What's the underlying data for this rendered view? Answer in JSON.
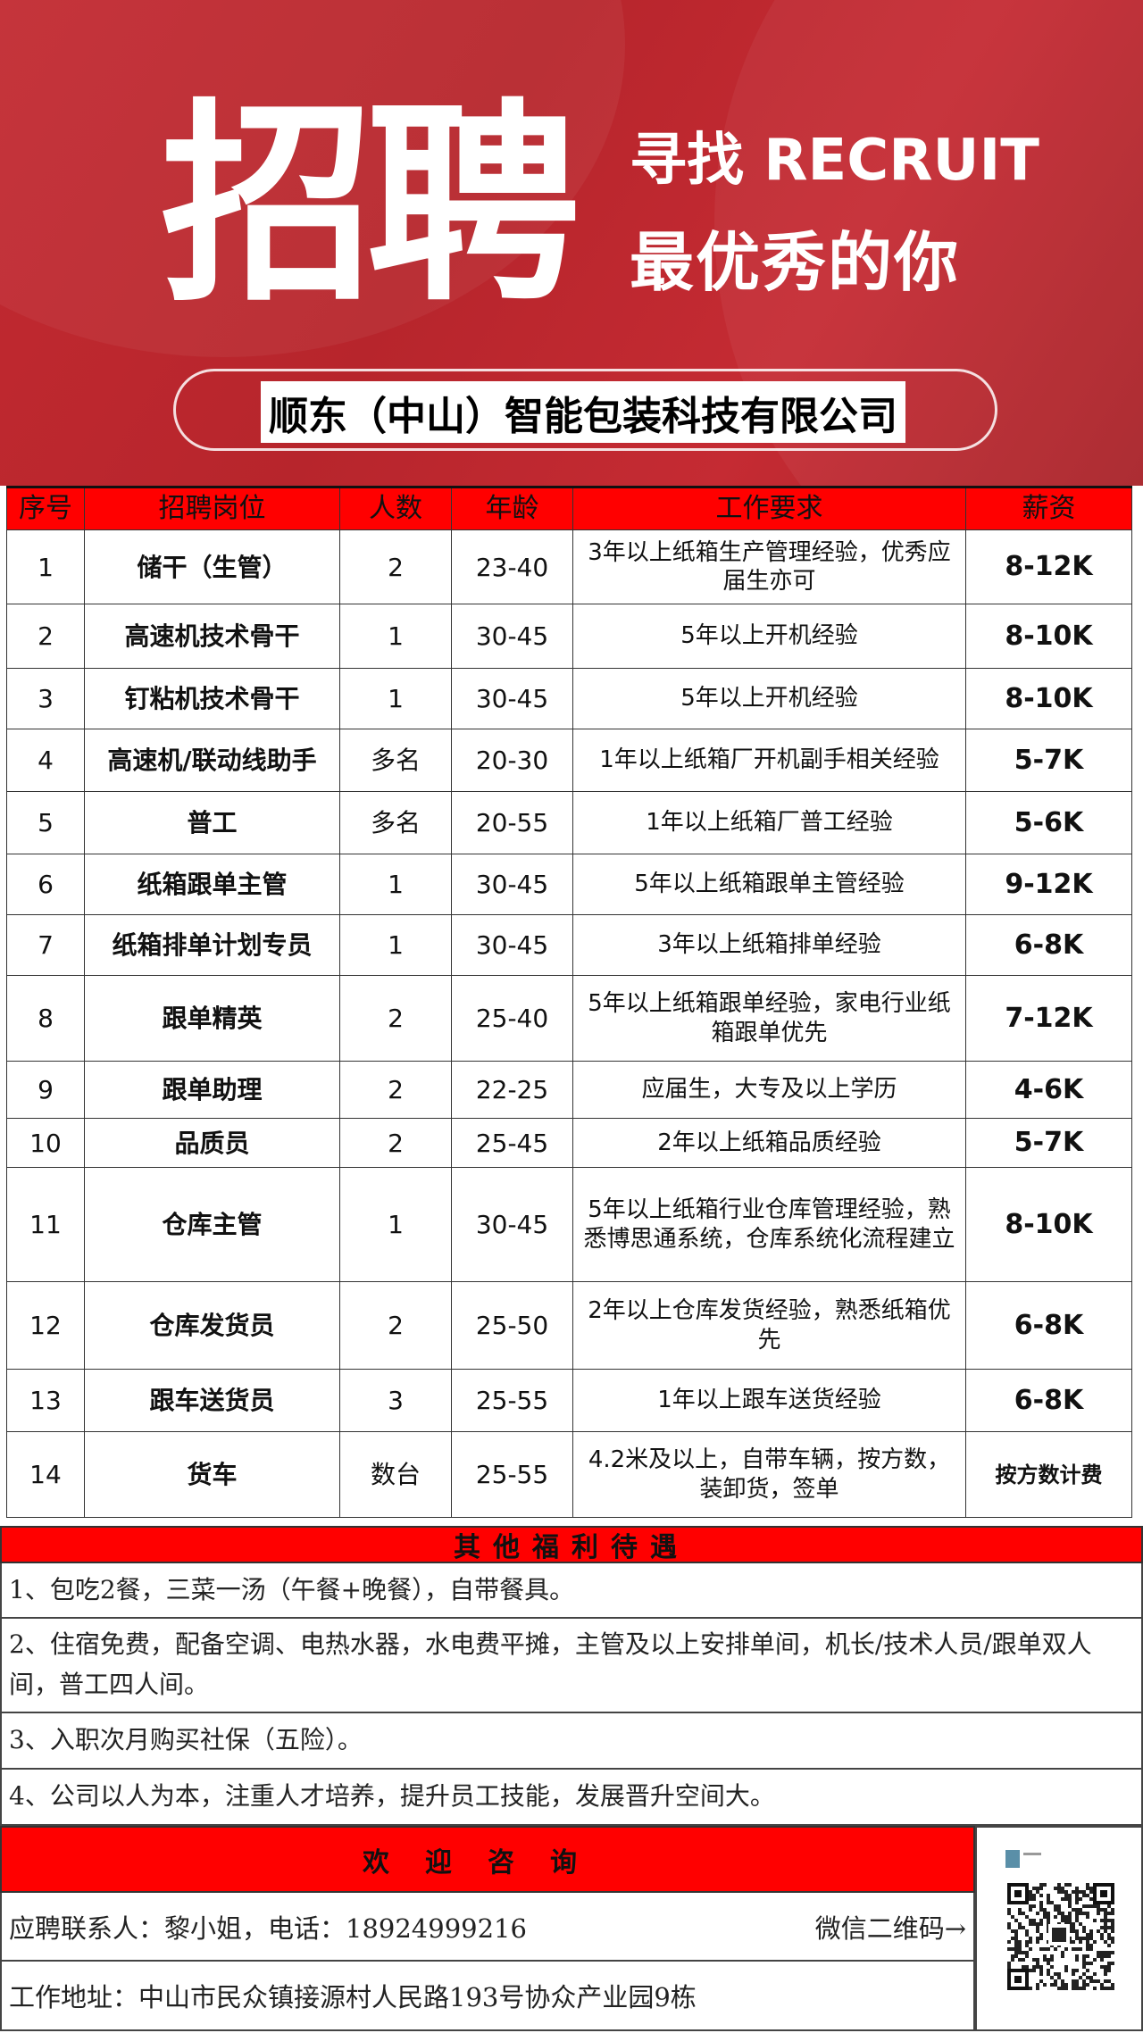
{
  "banner": {
    "title": "招聘",
    "subtitle1": "寻找 RECRUIT",
    "subtitle2": "最优秀的你",
    "company": "顺东（中山）智能包装科技有限公司"
  },
  "table": {
    "headers": [
      "序号",
      "招聘岗位",
      "人数",
      "年龄",
      "工作要求",
      "薪资"
    ],
    "rows": [
      {
        "no": "1",
        "position": "储干（生管）",
        "count": "2",
        "age": "23-40",
        "requirement": "3年以上纸箱生产管理经验，优秀应届生亦可",
        "salary": "8-12K"
      },
      {
        "no": "2",
        "position": "高速机技术骨干",
        "count": "1",
        "age": "30-45",
        "requirement": "5年以上开机经验",
        "salary": "8-10K"
      },
      {
        "no": "3",
        "position": "钉粘机技术骨干",
        "count": "1",
        "age": "30-45",
        "requirement": "5年以上开机经验",
        "salary": "8-10K"
      },
      {
        "no": "4",
        "position": "高速机/联动线助手",
        "count": "多名",
        "age": "20-30",
        "requirement": "1年以上纸箱厂开机副手相关经验",
        "salary": "5-7K"
      },
      {
        "no": "5",
        "position": "普工",
        "count": "多名",
        "age": "20-55",
        "requirement": "1年以上纸箱厂普工经验",
        "salary": "5-6K"
      },
      {
        "no": "6",
        "position": "纸箱跟单主管",
        "count": "1",
        "age": "30-45",
        "requirement": "5年以上纸箱跟单主管经验",
        "salary": "9-12K"
      },
      {
        "no": "7",
        "position": "纸箱排单计划专员",
        "count": "1",
        "age": "30-45",
        "requirement": "3年以上纸箱排单经验",
        "salary": "6-8K"
      },
      {
        "no": "8",
        "position": "跟单精英",
        "count": "2",
        "age": "25-40",
        "requirement": "5年以上纸箱跟单经验，家电行业纸箱跟单优先",
        "salary": "7-12K"
      },
      {
        "no": "9",
        "position": "跟单助理",
        "count": "2",
        "age": "22-25",
        "requirement": "应届生，大专及以上学历",
        "salary": "4-6K"
      },
      {
        "no": "10",
        "position": "品质员",
        "count": "2",
        "age": "25-45",
        "requirement": "2年以上纸箱品质经验",
        "salary": "5-7K"
      },
      {
        "no": "11",
        "position": "仓库主管",
        "count": "1",
        "age": "30-45",
        "requirement": "5年以上纸箱行业仓库管理经验，熟悉博思通系统，仓库系统化流程建立",
        "salary": "8-10K"
      },
      {
        "no": "12",
        "position": "仓库发货员",
        "count": "2",
        "age": "25-50",
        "requirement": "2年以上仓库发货经验，熟悉纸箱优先",
        "salary": "6-8K"
      },
      {
        "no": "13",
        "position": "跟车送货员",
        "count": "3",
        "age": "25-55",
        "requirement": "1年以上跟车送货经验",
        "salary": "6-8K"
      },
      {
        "no": "14",
        "position": "货车",
        "count": "数台",
        "age": "25-55",
        "requirement": "4.2米及以上，自带车辆，按方数，装卸货，签单",
        "salary": "按方数计费"
      }
    ]
  },
  "benefits": {
    "title": "其他福利待遇",
    "items": [
      "1、包吃2餐，三菜一汤（午餐+晚餐），自带餐具。",
      "2、住宿免费，配备空调、电热水器，水电费平摊，主管及以上安排单间，机长/技术人员/跟单双人间，普工四人间。",
      "3、入职次月购买社保（五险）。",
      "4、公司以人为本，注重人才培养，提升员工技能，发展晋升空间大。"
    ]
  },
  "consult": {
    "title": "欢迎咨询",
    "contact": "应聘联系人：黎小姐，电话：18924999216",
    "wechat": "微信二维码→",
    "address": "工作地址：中山市民众镇接源村人民路193号协众产业园9栋"
  },
  "colors": {
    "banner": "#c22a31",
    "header": "#ff0000"
  }
}
